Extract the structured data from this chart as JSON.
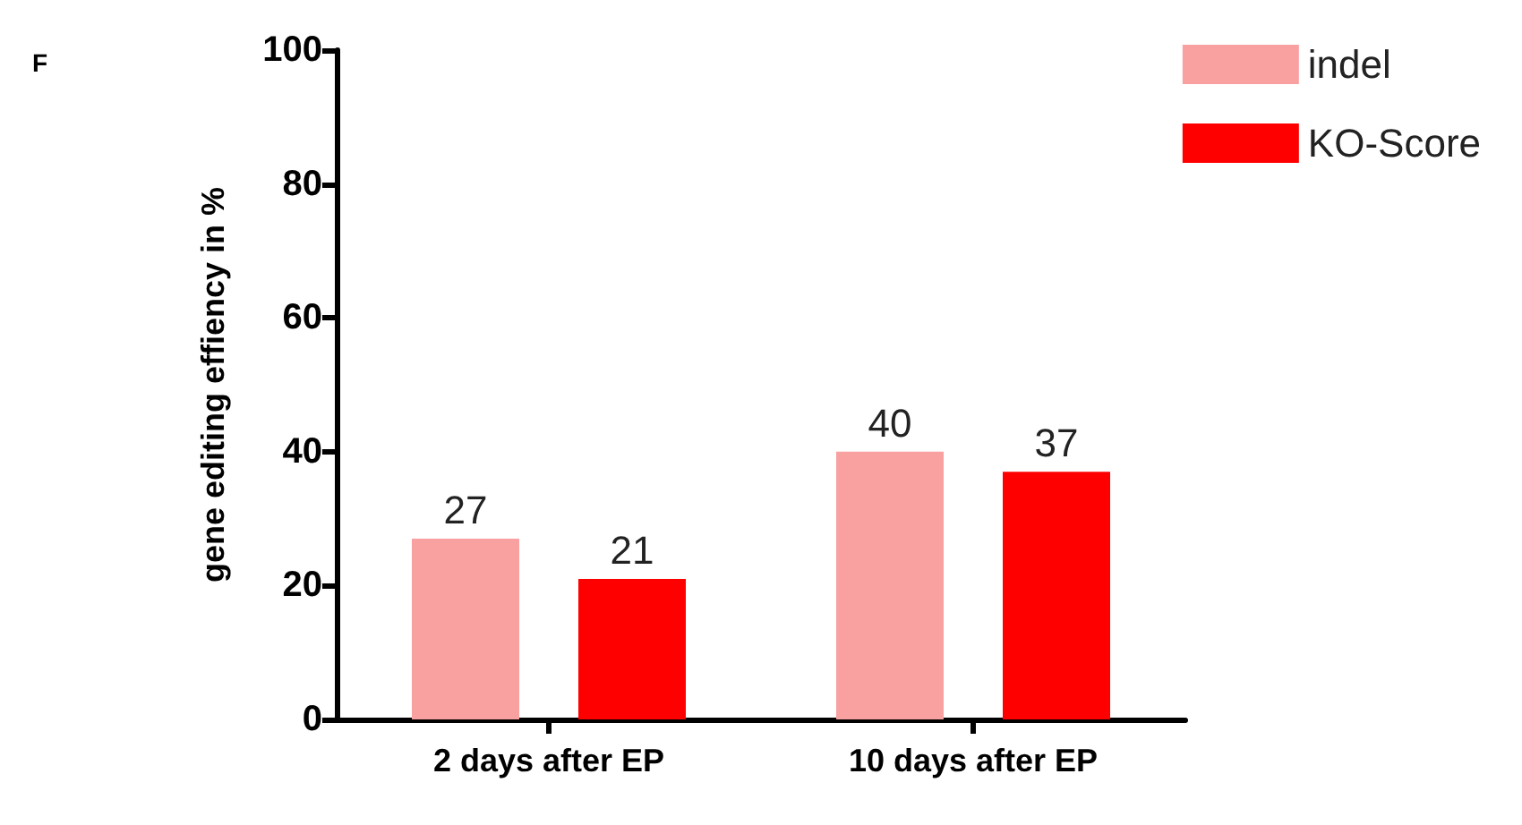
{
  "chart_data": {
    "type": "bar",
    "ylabel": "gene editing effiency in %",
    "categories": [
      "2 days after EP",
      "10 days after EP"
    ],
    "series": [
      {
        "name": "indel",
        "color": "#f9a0a0",
        "values": [
          27,
          40
        ]
      },
      {
        "name": "KO-Score",
        "color": "#ff0000",
        "values": [
          21,
          37
        ]
      }
    ],
    "ylim": [
      0,
      100
    ],
    "yticks": [
      0,
      20,
      40,
      60,
      80,
      100
    ],
    "grid": false,
    "legend": "top right",
    "data_labels": true,
    "annotations": [
      "F"
    ]
  }
}
